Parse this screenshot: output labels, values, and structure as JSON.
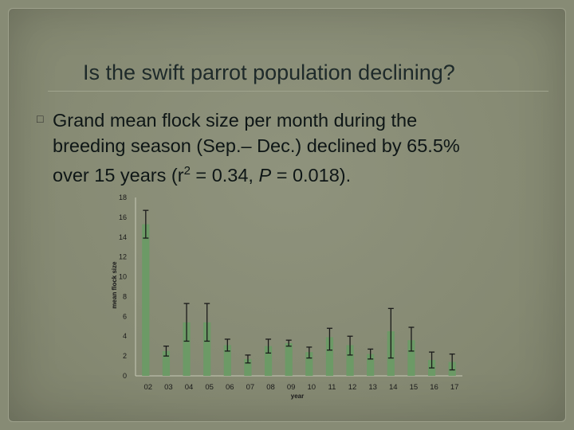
{
  "slide": {
    "title": "Is the swift parrot population declining?",
    "bullet_glyph": "□",
    "text": {
      "line1": "Grand mean flock size per month during the",
      "line2a": "breeding season (Sep.– Dec.) declined by 65.5%",
      "line3a": "over 15 years (r",
      "line3_sup": "2",
      "line3b": " = 0.34, ",
      "line3_italic": "P",
      "line3c": " = 0.018)."
    }
  },
  "chart_data": {
    "type": "bar",
    "categories": [
      "02",
      "03",
      "04",
      "05",
      "06",
      "07",
      "08",
      "09",
      "10",
      "11",
      "12",
      "13",
      "14",
      "15",
      "16",
      "17"
    ],
    "values": [
      15.3,
      2.5,
      5.4,
      5.4,
      3.1,
      1.7,
      3.0,
      3.3,
      2.4,
      3.9,
      3.1,
      2.2,
      4.5,
      3.6,
      1.6,
      1.4
    ],
    "error_low": [
      13.9,
      2.0,
      3.5,
      3.5,
      2.5,
      1.3,
      2.3,
      3.0,
      1.8,
      2.6,
      2.1,
      1.7,
      1.8,
      2.5,
      0.8,
      0.6
    ],
    "error_high": [
      16.7,
      3.0,
      7.3,
      7.3,
      3.7,
      2.1,
      3.7,
      3.6,
      2.9,
      4.8,
      4.0,
      2.7,
      6.8,
      4.9,
      2.4,
      2.2
    ],
    "xlabel": "year",
    "ylabel": "mean flock size",
    "ylim": [
      0,
      18
    ],
    "yticks": [
      0,
      2,
      4,
      6,
      8,
      10,
      12,
      14,
      16,
      18
    ],
    "grid": false,
    "colors": {
      "bar": "#6c9a66",
      "error_bar": "#1a1a1a",
      "axis": "#c8cab8",
      "tick_text": "#1a1a1a"
    }
  }
}
